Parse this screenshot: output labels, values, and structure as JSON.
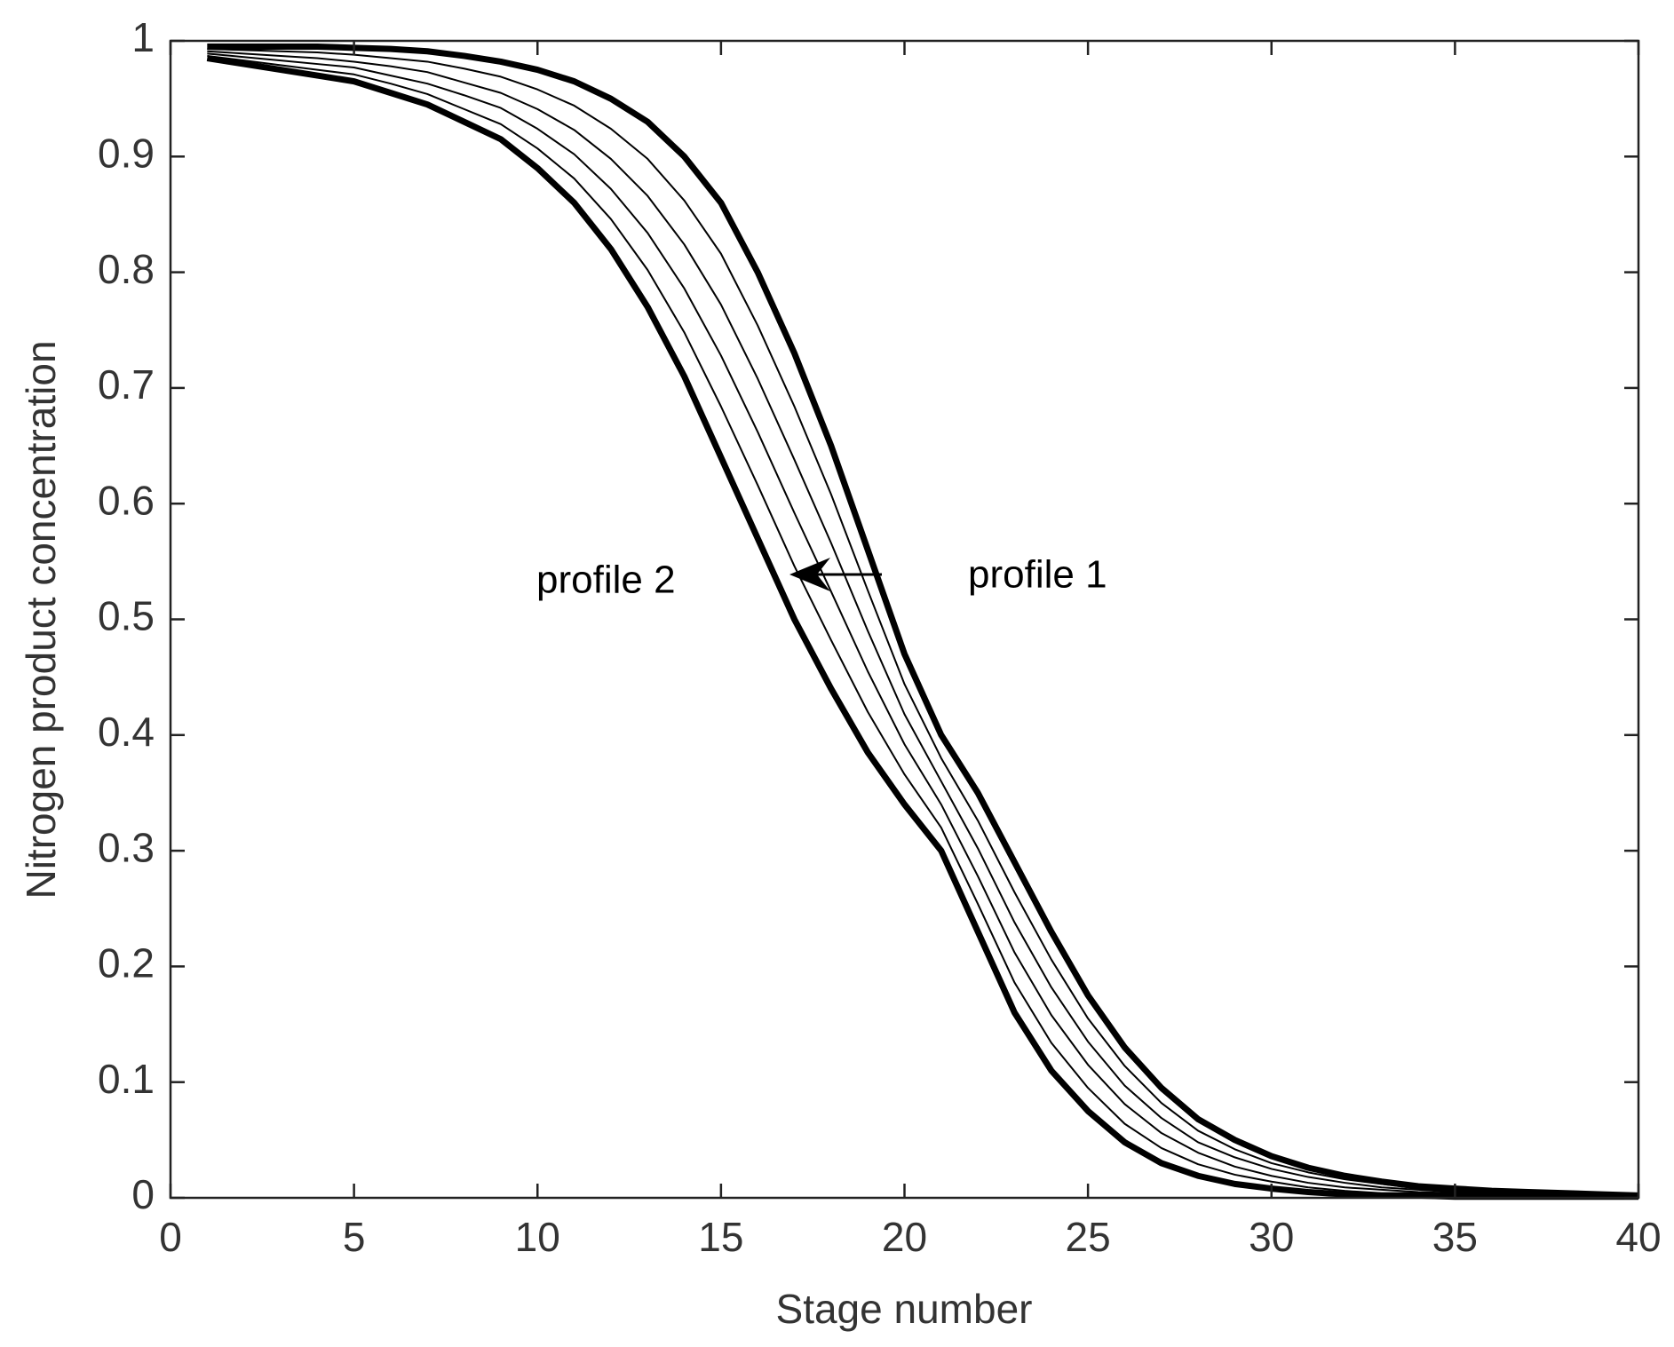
{
  "chart_data": {
    "type": "line",
    "x_label": "Stage number",
    "y_label": "Nitrogen product concentration",
    "annotations": [
      "profile 1",
      "profile 2"
    ],
    "x": [
      1,
      2,
      3,
      4,
      5,
      6,
      7,
      8,
      9,
      10,
      11,
      12,
      13,
      14,
      15,
      16,
      17,
      18,
      19,
      20,
      21,
      22,
      23,
      24,
      25,
      26,
      27,
      28,
      29,
      30,
      31,
      32,
      33,
      34,
      35,
      36,
      37,
      38,
      39,
      40
    ],
    "xlim": [
      0,
      40
    ],
    "xticks": [
      0,
      5,
      10,
      15,
      20,
      25,
      30,
      35,
      40
    ],
    "ylim": [
      0,
      1
    ],
    "yticks": [
      0,
      0.1,
      0.2,
      0.3,
      0.4,
      0.5,
      0.6,
      0.7,
      0.8,
      0.9,
      1
    ],
    "series": [
      {
        "color": "#000000",
        "linewidth": 7,
        "values": [
          0.995,
          0.995,
          0.995,
          0.995,
          0.994,
          0.993,
          0.991,
          0.987,
          0.982,
          0.975,
          0.965,
          0.95,
          0.93,
          0.9,
          0.86,
          0.8,
          0.73,
          0.65,
          0.56,
          0.47,
          0.4,
          0.35,
          0.29,
          0.23,
          0.175,
          0.13,
          0.095,
          0.068,
          0.05,
          0.036,
          0.026,
          0.019,
          0.014,
          0.01,
          0.008,
          0.006,
          0.005,
          0.004,
          0.003,
          0.002
        ]
      },
      {
        "color": "#000000",
        "linewidth": 2,
        "values": [
          0.993,
          0.992,
          0.991,
          0.99,
          0.988,
          0.985,
          0.982,
          0.976,
          0.969,
          0.958,
          0.944,
          0.924,
          0.898,
          0.862,
          0.816,
          0.754,
          0.684,
          0.608,
          0.525,
          0.444,
          0.38,
          0.326,
          0.264,
          0.206,
          0.155,
          0.114,
          0.082,
          0.058,
          0.042,
          0.03,
          0.022,
          0.016,
          0.012,
          0.008,
          0.007,
          0.005,
          0.004,
          0.003,
          0.003,
          0.002
        ]
      },
      {
        "color": "#000000",
        "linewidth": 2,
        "values": [
          0.991,
          0.989,
          0.987,
          0.985,
          0.982,
          0.978,
          0.973,
          0.964,
          0.955,
          0.941,
          0.923,
          0.898,
          0.866,
          0.824,
          0.772,
          0.708,
          0.638,
          0.566,
          0.49,
          0.418,
          0.36,
          0.302,
          0.238,
          0.182,
          0.135,
          0.097,
          0.069,
          0.048,
          0.035,
          0.025,
          0.018,
          0.013,
          0.009,
          0.007,
          0.005,
          0.004,
          0.003,
          0.003,
          0.002,
          0.001
        ]
      },
      {
        "color": "#000000",
        "linewidth": 2,
        "values": [
          0.989,
          0.986,
          0.983,
          0.98,
          0.977,
          0.97,
          0.963,
          0.953,
          0.942,
          0.924,
          0.902,
          0.872,
          0.834,
          0.786,
          0.728,
          0.662,
          0.592,
          0.524,
          0.455,
          0.392,
          0.34,
          0.278,
          0.212,
          0.158,
          0.115,
          0.081,
          0.056,
          0.039,
          0.027,
          0.019,
          0.013,
          0.009,
          0.007,
          0.005,
          0.004,
          0.003,
          0.003,
          0.002,
          0.002,
          0.001
        ]
      },
      {
        "color": "#000000",
        "linewidth": 2,
        "values": [
          0.987,
          0.983,
          0.979,
          0.975,
          0.971,
          0.963,
          0.954,
          0.941,
          0.928,
          0.907,
          0.881,
          0.846,
          0.802,
          0.748,
          0.684,
          0.616,
          0.546,
          0.482,
          0.42,
          0.366,
          0.32,
          0.254,
          0.186,
          0.134,
          0.095,
          0.064,
          0.043,
          0.029,
          0.02,
          0.014,
          0.009,
          0.006,
          0.004,
          0.004,
          0.002,
          0.002,
          0.002,
          0.002,
          0.001,
          0.001
        ]
      },
      {
        "color": "#000000",
        "linewidth": 7,
        "values": [
          0.985,
          0.98,
          0.975,
          0.97,
          0.965,
          0.955,
          0.945,
          0.93,
          0.915,
          0.89,
          0.86,
          0.82,
          0.77,
          0.71,
          0.64,
          0.57,
          0.5,
          0.44,
          0.385,
          0.34,
          0.3,
          0.23,
          0.16,
          0.11,
          0.075,
          0.048,
          0.03,
          0.019,
          0.012,
          0.008,
          0.005,
          0.003,
          0.002,
          0.002,
          0.001,
          0.001,
          0.001,
          0.001,
          0.001,
          0.001
        ]
      }
    ]
  }
}
